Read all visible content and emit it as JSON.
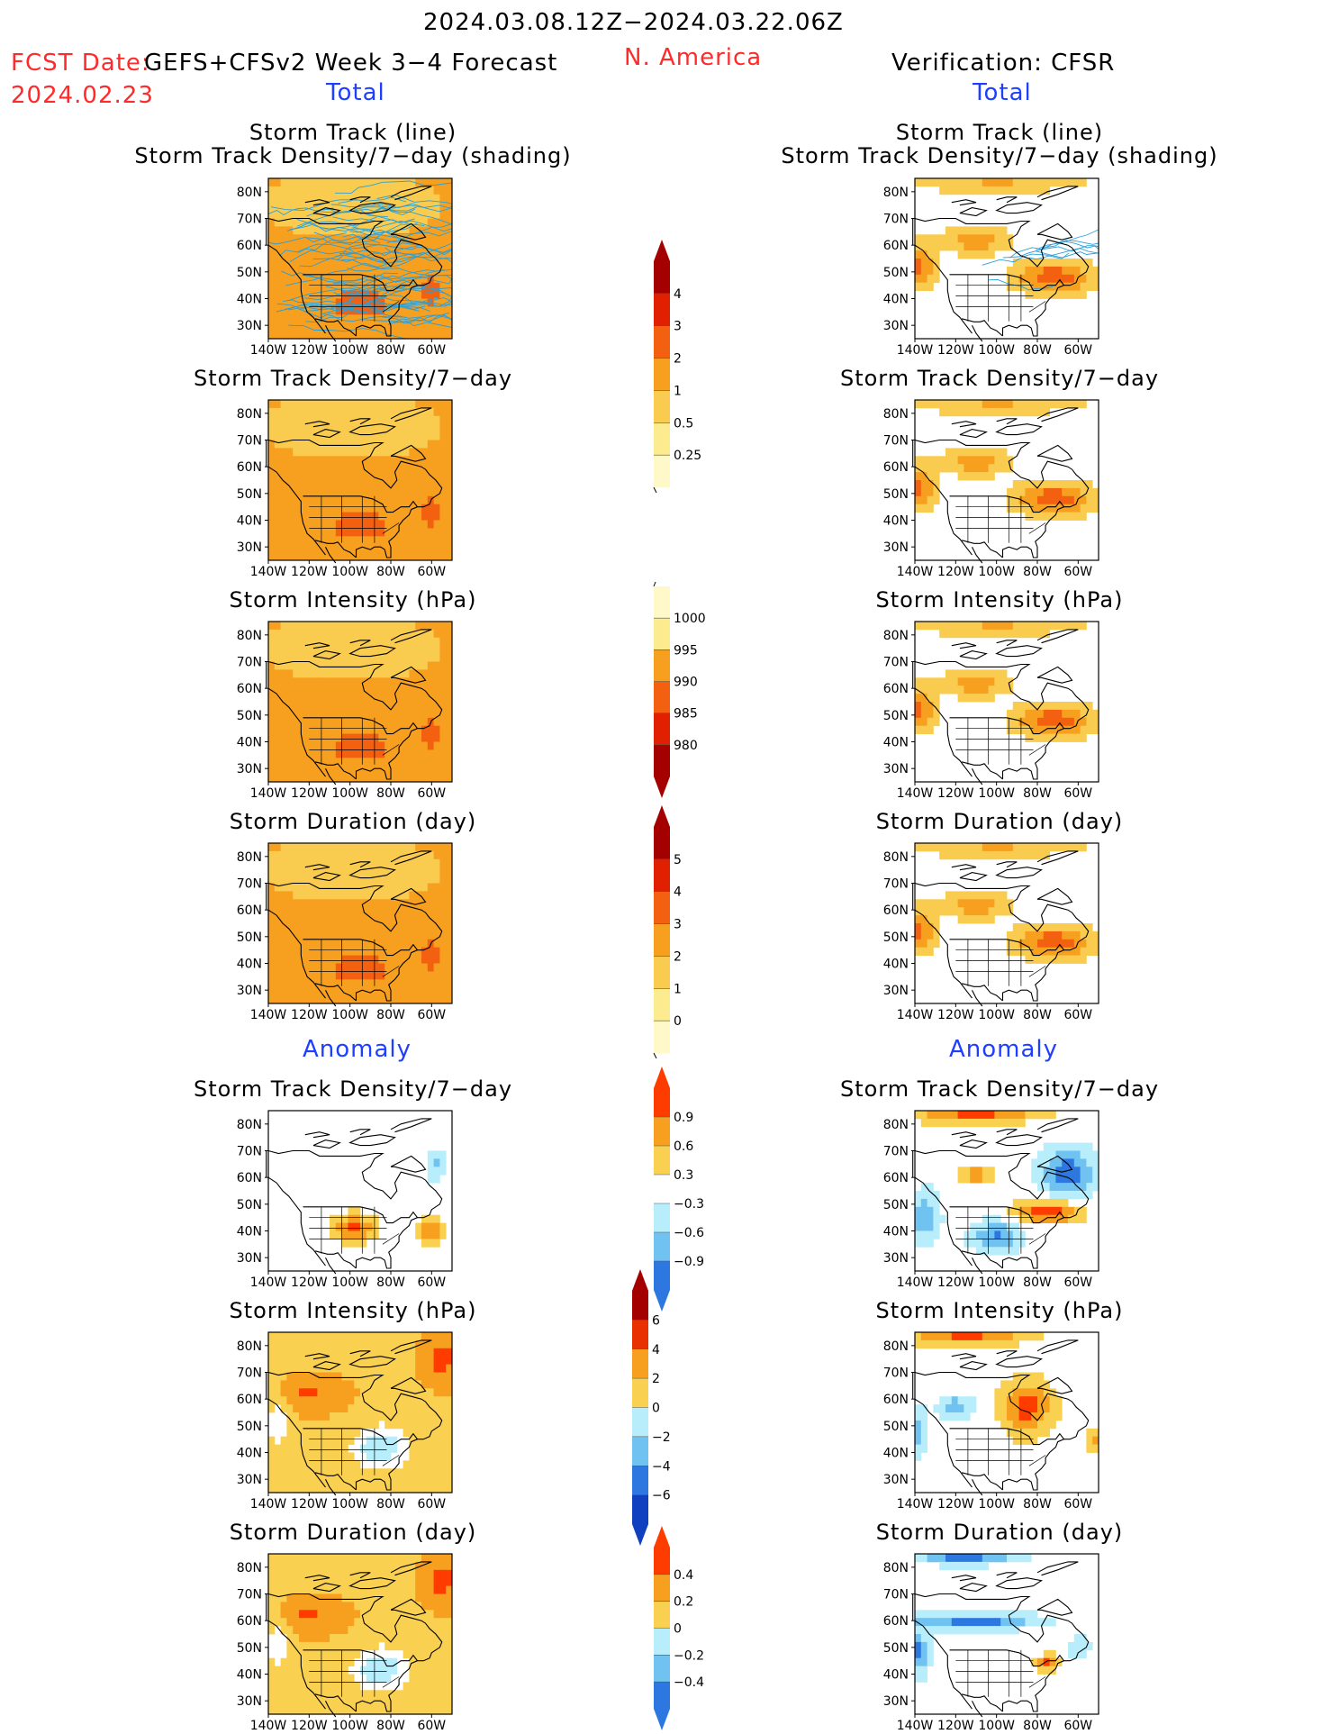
{
  "header": {
    "time_range": "2024.03.08.12Z−2024.03.22.06Z",
    "fcst_label": "FCST Date:",
    "fcst_model": "GEFS+CFSv2 Week 3−4 Forecast",
    "fcst_date": "2024.02.23",
    "region": "N. America",
    "verification": "Verification: CFSR",
    "left_total": "Total",
    "right_total": "Total",
    "left_anomaly": "Anomaly",
    "right_anomaly": "Anomaly"
  },
  "axes": {
    "lat_labels": [
      "80N",
      "70N",
      "60N",
      "50N",
      "40N",
      "30N"
    ],
    "lon_labels": [
      "140W",
      "120W",
      "100W",
      "80W",
      "60W"
    ]
  },
  "panel_titles": {
    "track_line": "Storm Track (line)",
    "track_shading": "Storm Track Density/7−day (shading)",
    "density": "Storm Track Density/7−day",
    "intensity": "Storm Intensity (hPa)",
    "duration": "Storm Duration (day)"
  },
  "colorbars": {
    "density_total": {
      "labels": [
        "4",
        "3",
        "2",
        "1",
        "0.5",
        "0.25"
      ],
      "colors": [
        "#a50000",
        "#e02000",
        "#f26010",
        "#f7a020",
        "#f9cc50",
        "#fdeb90",
        "#fff8c8"
      ]
    },
    "intensity_total": {
      "labels": [
        "1000",
        "995",
        "990",
        "985",
        "980"
      ],
      "colors": [
        "#fff8c8",
        "#fdeb90",
        "#f7a020",
        "#f26010",
        "#e02000",
        "#a50000"
      ]
    },
    "duration_total": {
      "labels": [
        "5",
        "4",
        "3",
        "2",
        "1",
        "0"
      ],
      "colors": [
        "#a50000",
        "#e02000",
        "#f26010",
        "#f7a020",
        "#f9cc50",
        "#fdeb90",
        "#fff8c8"
      ]
    },
    "density_anom": {
      "labels": [
        "0.9",
        "0.6",
        "0.3",
        "−0.3",
        "−0.6",
        "−0.9"
      ],
      "colors": [
        "#ff3c00",
        "#f7a020",
        "#f9d050",
        "#ffffff",
        "#b8eefc",
        "#70c2f0",
        "#2c78e0"
      ]
    },
    "intensity_anom": {
      "labels": [
        "6",
        "4",
        "2",
        "0",
        "−2",
        "−4",
        "−6"
      ],
      "colors": [
        "#a50000",
        "#e83000",
        "#f7a020",
        "#f9d050",
        "#b8eefc",
        "#70c2f0",
        "#2c78e0",
        "#1040c0"
      ]
    },
    "duration_anom": {
      "labels": [
        "0.4",
        "0.2",
        "0",
        "−0.2",
        "−0.4"
      ],
      "colors": [
        "#ff3c00",
        "#f7a020",
        "#f9d050",
        "#b8eefc",
        "#70c2f0",
        "#2c78e0"
      ]
    }
  },
  "chart_data": [
    {
      "type": "heatmap",
      "title": "Storm Track (line) / Storm Track Density/7−day (shading)",
      "source": "GEFS+CFSv2 Week 3−4 Forecast",
      "section": "Total",
      "lon_range": [
        -140,
        -50
      ],
      "lat_range": [
        25,
        85
      ],
      "fill": "orange",
      "tracks": "many"
    },
    {
      "type": "heatmap",
      "title": "Storm Track Density/7−day",
      "source": "GEFS+CFSv2",
      "section": "Total",
      "fill": "orange"
    },
    {
      "type": "heatmap",
      "title": "Storm Intensity (hPa)",
      "source": "GEFS+CFSv2",
      "section": "Total",
      "fill": "orange"
    },
    {
      "type": "heatmap",
      "title": "Storm Duration (day)",
      "source": "GEFS+CFSv2",
      "section": "Total",
      "fill": "orange"
    },
    {
      "type": "heatmap",
      "title": "Storm Track Density/7−day",
      "source": "GEFS+CFSv2",
      "section": "Anomaly",
      "fill": "weak"
    },
    {
      "type": "heatmap",
      "title": "Storm Intensity (hPa)",
      "source": "GEFS+CFSv2",
      "section": "Anomaly",
      "fill": "mixed"
    },
    {
      "type": "heatmap",
      "title": "Storm Duration (day)",
      "source": "GEFS+CFSv2",
      "section": "Anomaly",
      "fill": "mixed"
    },
    {
      "type": "heatmap",
      "title": "Storm Track (line) / Storm Track Density/7−day (shading)",
      "source": "CFSR",
      "section": "Total",
      "fill": "bands",
      "tracks": "few"
    },
    {
      "type": "heatmap",
      "title": "Storm Track Density/7−day",
      "source": "CFSR",
      "section": "Total",
      "fill": "bands"
    },
    {
      "type": "heatmap",
      "title": "Storm Intensity (hPa)",
      "source": "CFSR",
      "section": "Total",
      "fill": "bands"
    },
    {
      "type": "heatmap",
      "title": "Storm Duration (day)",
      "source": "CFSR",
      "section": "Total",
      "fill": "bands"
    },
    {
      "type": "heatmap",
      "title": "Storm Track Density/7−day",
      "source": "CFSR",
      "section": "Anomaly",
      "fill": "strong"
    },
    {
      "type": "heatmap",
      "title": "Storm Intensity (hPa)",
      "source": "CFSR",
      "section": "Anomaly",
      "fill": "mixed_r"
    },
    {
      "type": "heatmap",
      "title": "Storm Duration (day)",
      "source": "CFSR",
      "section": "Anomaly",
      "fill": "blue"
    }
  ]
}
